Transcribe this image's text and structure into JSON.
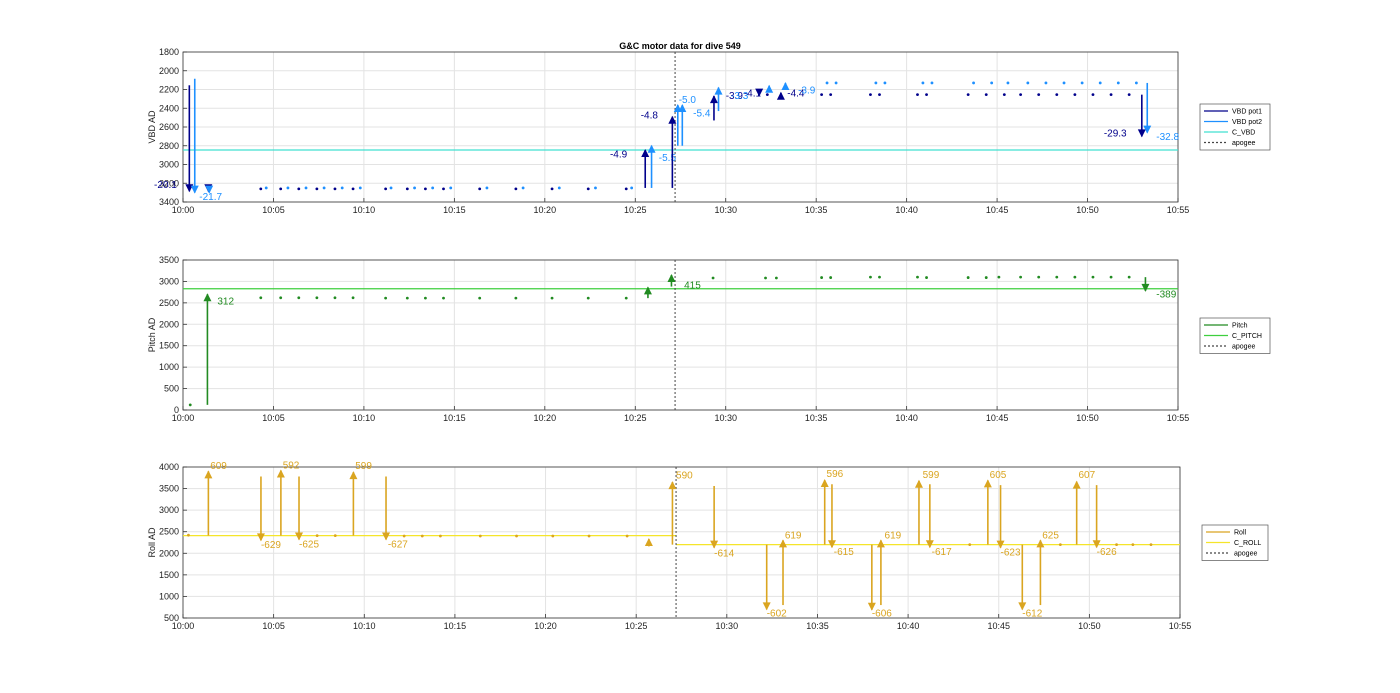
{
  "chart_data": [
    {
      "type": "scatter",
      "title": "G&C motor data for dive 549",
      "ylabel": "VBD AD",
      "ylim": [
        1800,
        3400
      ],
      "y_reversed": true,
      "yticks": [
        1800,
        2000,
        2200,
        2400,
        2600,
        2800,
        3000,
        3200,
        3400
      ],
      "x_range": [
        "10:00",
        "10:55"
      ],
      "xticks": [
        "10:00",
        "10:05",
        "10:10",
        "10:15",
        "10:20",
        "10:25",
        "10:30",
        "10:35",
        "10:40",
        "10:45",
        "10:50",
        "10:55"
      ],
      "grid": true,
      "legend_position": "right",
      "legend": [
        "VBD pot1",
        "VBD pot2",
        "C_VBD",
        "apogee"
      ],
      "colors": {
        "pot1": "#00008b",
        "pot2": "#1e90ff",
        "c_line": "#40e0d0",
        "apogee": "#444444"
      },
      "c_value": 2845,
      "apogee": 27.2,
      "series": [
        {
          "name": "VBD pot1",
          "x": [
            4.3,
            5.4,
            6.4,
            7.4,
            8.4,
            9.4,
            11.2,
            12.4,
            13.4,
            14.4,
            16.4,
            18.4,
            20.4,
            22.4,
            24.5,
            32.3,
            35.3,
            35.8,
            38.0,
            38.5,
            40.6,
            41.1,
            43.4,
            44.4,
            45.4,
            46.3,
            47.3,
            48.3,
            49.3,
            50.3,
            51.3,
            52.3
          ],
          "y": [
            3260,
            3260,
            3260,
            3260,
            3260,
            3260,
            3260,
            3260,
            3260,
            3260,
            3260,
            3260,
            3260,
            3260,
            3260,
            2255,
            2255,
            2255,
            2255,
            2255,
            2255,
            2255,
            2255,
            2255,
            2255,
            2255,
            2255,
            2255,
            2255,
            2255,
            2255,
            2255
          ]
        },
        {
          "name": "VBD pot2",
          "x": [
            4.6,
            5.8,
            6.8,
            7.8,
            8.8,
            9.8,
            11.5,
            12.8,
            13.8,
            14.8,
            16.8,
            18.8,
            20.8,
            22.8,
            24.8,
            35.6,
            36.1,
            38.3,
            38.8,
            40.9,
            41.4,
            43.7,
            44.7,
            45.6,
            46.7,
            47.7,
            48.7,
            49.7,
            50.7,
            51.7,
            52.7
          ],
          "y": [
            3250,
            3250,
            3250,
            3250,
            3250,
            3250,
            3250,
            3250,
            3250,
            3250,
            3250,
            3250,
            3250,
            3250,
            3250,
            2130,
            2130,
            2130,
            2130,
            2130,
            2130,
            2130,
            2130,
            2130,
            2130,
            2130,
            2130,
            2130,
            2130,
            2130,
            2130
          ]
        }
      ],
      "moves": [
        {
          "s": 0,
          "x": 0.35,
          "y1": 2155,
          "y2": 3285,
          "label": "-20.1",
          "lx": -1.6,
          "ly": 3250
        },
        {
          "s": 1,
          "x": 0.65,
          "y1": 2085,
          "y2": 3300,
          "label": "",
          "lx": 0,
          "ly": 0
        },
        {
          "s": 0,
          "x": 1.4,
          "y1": 3250,
          "y2": 3285,
          "label": "",
          "lx": 0,
          "ly": 0
        },
        {
          "s": 1,
          "x": 1.45,
          "y1": 3250,
          "y2": 3300,
          "label": "-21.7",
          "lx": 0.9,
          "ly": 3380
        },
        {
          "s": 0,
          "x": 25.55,
          "y1": 3250,
          "y2": 2845,
          "label": "-4.9",
          "lx": 23.6,
          "ly": 2925
        },
        {
          "s": 1,
          "x": 25.9,
          "y1": 3250,
          "y2": 2800,
          "label": "-5.5",
          "lx": 26.3,
          "ly": 2960
        },
        {
          "s": 0,
          "x": 27.05,
          "y1": 3250,
          "y2": 2490,
          "label": "-4.8",
          "lx": 25.3,
          "ly": 2510
        },
        {
          "s": 1,
          "x": 27.35,
          "y1": 2800,
          "y2": 2365,
          "label": "-5.0",
          "lx": 27.4,
          "ly": 2345
        },
        {
          "s": 1,
          "x": 27.6,
          "y1": 2800,
          "y2": 2365,
          "label": "-5.4",
          "lx": 28.2,
          "ly": 2490
        },
        {
          "s": 0,
          "x": 29.35,
          "y1": 2530,
          "y2": 2270,
          "label": "-3.9",
          "lx": 30.0,
          "ly": 2300
        },
        {
          "s": 1,
          "x": 29.6,
          "y1": 2430,
          "y2": 2180,
          "label": "-3.3",
          "lx": 30.3,
          "ly": 2300
        },
        {
          "s": 0,
          "x": 31.85,
          "y1": 2255,
          "y2": 2265,
          "label": "-4.1",
          "lx": 31.0,
          "ly": 2275
        },
        {
          "s": 1,
          "x": 32.4,
          "y1": 2210,
          "y2": 2160,
          "label": "",
          "lx": 0,
          "ly": 0
        },
        {
          "s": 0,
          "x": 33.05,
          "y1": 2255,
          "y2": 2235,
          "label": "-4.4",
          "lx": 33.4,
          "ly": 2275
        },
        {
          "s": 1,
          "x": 33.3,
          "y1": 2190,
          "y2": 2130,
          "label": "-3.9",
          "lx": 34.0,
          "ly": 2245
        },
        {
          "s": 0,
          "x": 53.0,
          "y1": 2255,
          "y2": 2700,
          "label": "-29.3",
          "lx": 50.9,
          "ly": 2700
        },
        {
          "s": 1,
          "x": 53.3,
          "y1": 2130,
          "y2": 2660,
          "label": "-32.8",
          "lx": 53.8,
          "ly": 2740
        }
      ]
    },
    {
      "type": "scatter",
      "title": "",
      "ylabel": "Pitch AD",
      "ylim": [
        0,
        3500
      ],
      "y_reversed": false,
      "yticks": [
        0,
        500,
        1000,
        1500,
        2000,
        2500,
        3000,
        3500
      ],
      "x_range": [
        "10:00",
        "10:55"
      ],
      "xticks": [
        "10:00",
        "10:05",
        "10:10",
        "10:15",
        "10:20",
        "10:25",
        "10:30",
        "10:35",
        "10:40",
        "10:45",
        "10:50",
        "10:55"
      ],
      "grid": true,
      "legend_position": "right",
      "legend": [
        "Pitch",
        "C_PITCH",
        "apogee"
      ],
      "colors": {
        "pot1": "#228b22",
        "c_line": "#3ecf3e",
        "apogee": "#444444"
      },
      "c_value": 2830,
      "apogee": 27.2,
      "series": [
        {
          "name": "Pitch",
          "x": [
            0.4,
            4.3,
            5.4,
            6.4,
            7.4,
            8.4,
            9.4,
            11.2,
            12.4,
            13.4,
            14.4,
            16.4,
            18.4,
            20.4,
            22.4,
            24.5,
            29.3,
            32.2,
            32.8,
            35.3,
            35.8,
            38.0,
            38.5,
            40.6,
            41.1,
            43.4,
            44.4,
            45.1,
            46.3,
            47.3,
            48.3,
            49.3,
            50.3,
            51.3,
            52.3
          ],
          "y": [
            120,
            2620,
            2620,
            2620,
            2620,
            2620,
            2620,
            2610,
            2610,
            2610,
            2610,
            2610,
            2610,
            2610,
            2610,
            2610,
            3080,
            3080,
            3080,
            3090,
            3090,
            3100,
            3100,
            3100,
            3090,
            3090,
            3090,
            3100,
            3100,
            3100,
            3100,
            3100,
            3100,
            3100,
            3100
          ]
        }
      ],
      "moves": [
        {
          "s": 0,
          "x": 1.35,
          "y1": 120,
          "y2": 2700,
          "label": "312",
          "lx": 1.9,
          "ly": 2460
        },
        {
          "s": 0,
          "x": 25.7,
          "y1": 2610,
          "y2": 2860,
          "label": "",
          "lx": 0,
          "ly": 0
        },
        {
          "s": 0,
          "x": 27.0,
          "y1": 2880,
          "y2": 3150,
          "label": "415",
          "lx": 27.7,
          "ly": 2840
        },
        {
          "s": 0,
          "x": 53.2,
          "y1": 3100,
          "y2": 2780,
          "label": "-389",
          "lx": 53.8,
          "ly": 2620
        }
      ]
    },
    {
      "type": "scatter",
      "title": "",
      "ylabel": "Roll AD",
      "ylim": [
        500,
        4000
      ],
      "y_reversed": false,
      "yticks": [
        500,
        1000,
        1500,
        2000,
        2500,
        3000,
        3500,
        4000
      ],
      "x_range": [
        "10:00",
        "10:55"
      ],
      "xticks": [
        "10:00",
        "10:05",
        "10:10",
        "10:15",
        "10:20",
        "10:25",
        "10:30",
        "10:35",
        "10:40",
        "10:45",
        "10:50",
        "10:55"
      ],
      "grid": true,
      "legend_position": "right",
      "legend": [
        "Roll",
        "C_ROLL",
        "apogee"
      ],
      "colors": {
        "pot1": "#daa520",
        "c_line": "#f5e52a",
        "apogee": "#444444"
      },
      "c_value_segments": [
        {
          "x0": 0,
          "x1": 27.2,
          "y": 2410
        },
        {
          "x0": 27.2,
          "x1": 55,
          "y": 2200
        }
      ],
      "apogee": 27.2,
      "series": [
        {
          "name": "Roll",
          "x": [
            0.3,
            7.4,
            8.4,
            12.2,
            13.2,
            14.2,
            16.4,
            18.4,
            20.4,
            22.4,
            24.5,
            43.4,
            48.4,
            51.5,
            52.4,
            53.4
          ],
          "y": [
            2420,
            2410,
            2410,
            2400,
            2400,
            2400,
            2400,
            2400,
            2400,
            2400,
            2400,
            2200,
            2200,
            2200,
            2200,
            2200
          ]
        }
      ],
      "moves": [
        {
          "s": 0,
          "x": 1.4,
          "y1": 2410,
          "y2": 3900,
          "label": "609",
          "lx": 1.5,
          "ly": 3950
        },
        {
          "s": 0,
          "x": 4.3,
          "y1": 3780,
          "y2": 2300,
          "label": "-629",
          "lx": 4.3,
          "ly": 2120
        },
        {
          "s": 0,
          "x": 5.4,
          "y1": 2410,
          "y2": 3920,
          "label": "592",
          "lx": 5.5,
          "ly": 3970
        },
        {
          "s": 0,
          "x": 6.4,
          "y1": 3780,
          "y2": 2320,
          "label": "-625",
          "lx": 6.4,
          "ly": 2130
        },
        {
          "s": 0,
          "x": 9.4,
          "y1": 2410,
          "y2": 3880,
          "label": "599",
          "lx": 9.5,
          "ly": 3950
        },
        {
          "s": 0,
          "x": 11.2,
          "y1": 3780,
          "y2": 2320,
          "label": "-627",
          "lx": 11.3,
          "ly": 2130
        },
        {
          "s": 0,
          "x": 25.7,
          "y1": 2160,
          "y2": 2330,
          "label": "",
          "lx": 0,
          "ly": 0
        },
        {
          "s": 0,
          "x": 27.0,
          "y1": 2200,
          "y2": 3650,
          "label": "590",
          "lx": 27.2,
          "ly": 3730
        },
        {
          "s": 0,
          "x": 29.3,
          "y1": 3560,
          "y2": 2130,
          "label": "-614",
          "lx": 29.3,
          "ly": 1930
        },
        {
          "s": 0,
          "x": 32.2,
          "y1": 2200,
          "y2": 700,
          "label": "-602",
          "lx": 32.2,
          "ly": 530
        },
        {
          "s": 0,
          "x": 33.1,
          "y1": 800,
          "y2": 2300,
          "label": "619",
          "lx": 33.2,
          "ly": 2340
        },
        {
          "s": 0,
          "x": 35.4,
          "y1": 2200,
          "y2": 3700,
          "label": "596",
          "lx": 35.5,
          "ly": 3770
        },
        {
          "s": 0,
          "x": 35.8,
          "y1": 3600,
          "y2": 2140,
          "label": "-615",
          "lx": 35.9,
          "ly": 1960
        },
        {
          "s": 0,
          "x": 38.0,
          "y1": 2200,
          "y2": 690,
          "label": "-606",
          "lx": 38.0,
          "ly": 530
        },
        {
          "s": 0,
          "x": 38.5,
          "y1": 800,
          "y2": 2300,
          "label": "619",
          "lx": 38.7,
          "ly": 2340
        },
        {
          "s": 0,
          "x": 40.6,
          "y1": 2200,
          "y2": 3680,
          "label": "599",
          "lx": 40.8,
          "ly": 3740
        },
        {
          "s": 0,
          "x": 41.2,
          "y1": 3600,
          "y2": 2140,
          "label": "-617",
          "lx": 41.3,
          "ly": 1960
        },
        {
          "s": 0,
          "x": 44.4,
          "y1": 2200,
          "y2": 3690,
          "label": "605",
          "lx": 44.5,
          "ly": 3740
        },
        {
          "s": 0,
          "x": 45.1,
          "y1": 3580,
          "y2": 2130,
          "label": "-623",
          "lx": 45.1,
          "ly": 1950
        },
        {
          "s": 0,
          "x": 46.3,
          "y1": 2200,
          "y2": 700,
          "label": "-612",
          "lx": 46.3,
          "ly": 530
        },
        {
          "s": 0,
          "x": 47.3,
          "y1": 800,
          "y2": 2300,
          "label": "625",
          "lx": 47.4,
          "ly": 2340
        },
        {
          "s": 0,
          "x": 49.3,
          "y1": 2200,
          "y2": 3660,
          "label": "607",
          "lx": 49.4,
          "ly": 3740
        },
        {
          "s": 0,
          "x": 50.4,
          "y1": 3580,
          "y2": 2140,
          "label": "-626",
          "lx": 50.4,
          "ly": 1960
        }
      ]
    }
  ]
}
